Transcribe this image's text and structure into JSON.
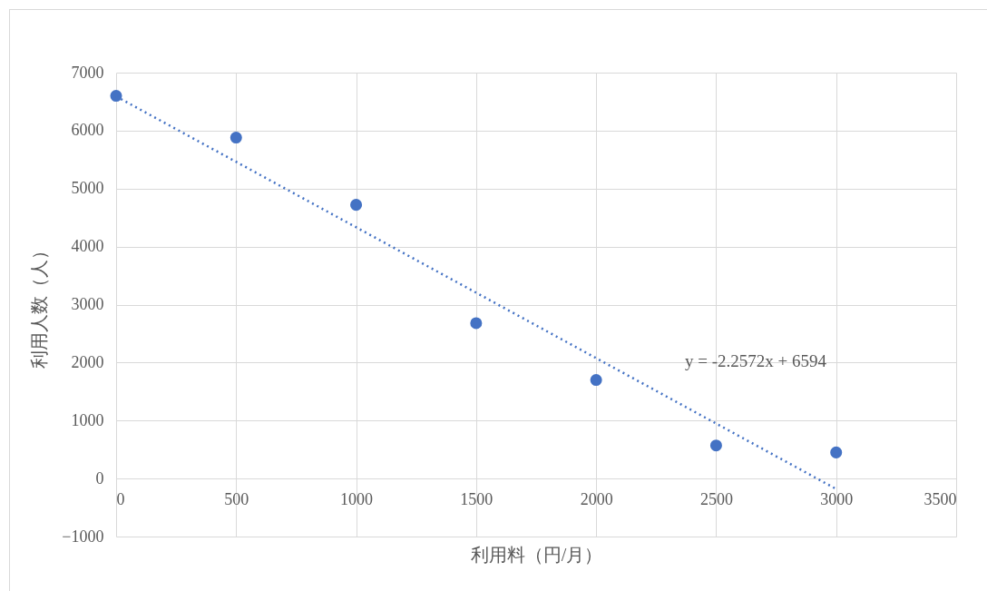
{
  "chart_data": {
    "type": "scatter",
    "xlabel": "利用料（円/月）",
    "ylabel": "利用人数（人）",
    "x": [
      0,
      500,
      1000,
      1500,
      2000,
      2500,
      3000
    ],
    "series": [
      {
        "color": "#4472c4",
        "marker": "circle",
        "values": [
          6600,
          5880,
          4720,
          2680,
          1700,
          570,
          450
        ]
      },
      {
        "type": "line",
        "color": "#4472c4",
        "marker": "none",
        "line_style": "dotted",
        "x": [
          0,
          3000
        ],
        "values": [
          6590,
          -180
        ]
      }
    ],
    "xlim": [
      0,
      3500
    ],
    "xticks": [
      0,
      500,
      1000,
      1500,
      2000,
      2500,
      3000,
      3500
    ],
    "ylim": [
      -1000,
      7000
    ],
    "yticks": [
      -1000,
      0,
      1000,
      2000,
      3000,
      4000,
      5000,
      6000,
      7000
    ],
    "grid": true,
    "annotations": [
      {
        "text": "y = -2.2572x + 6594",
        "x": 2370,
        "y": 1240
      }
    ]
  }
}
